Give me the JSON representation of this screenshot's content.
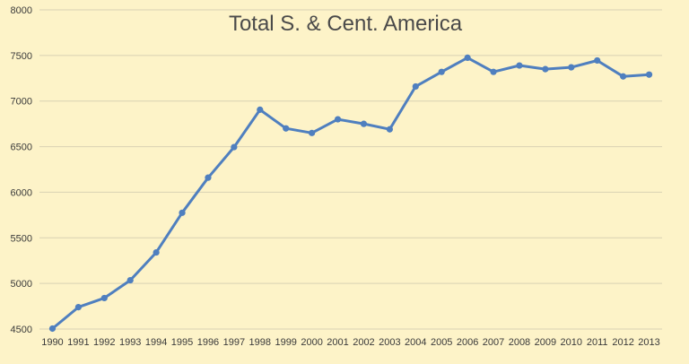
{
  "chart_data": {
    "type": "line",
    "title": "Total S. & Cent. America",
    "xlabel": "",
    "ylabel": "",
    "x": [
      "1990",
      "1991",
      "1992",
      "1993",
      "1994",
      "1995",
      "1996",
      "1997",
      "1998",
      "1999",
      "2000",
      "2001",
      "2002",
      "2003",
      "2004",
      "2005",
      "2006",
      "2007",
      "2008",
      "2009",
      "2010",
      "2011",
      "2012",
      "2013"
    ],
    "series": [
      {
        "values": [
          4505,
          4740,
          4840,
          5035,
          5340,
          5775,
          6160,
          6495,
          6905,
          6700,
          6650,
          6800,
          6750,
          6690,
          7160,
          7320,
          7475,
          7320,
          7390,
          7350,
          7370,
          7445,
          7270,
          7290
        ]
      }
    ],
    "ylim": [
      4500,
      8000
    ],
    "yticks": [
      4500,
      5000,
      5500,
      6000,
      6500,
      7000,
      7500,
      8000
    ],
    "grid": true,
    "legend": "none",
    "colors": {
      "line": "#4f7fbf",
      "background": "#fdf3c8",
      "grid": "#d9d2b3"
    }
  }
}
